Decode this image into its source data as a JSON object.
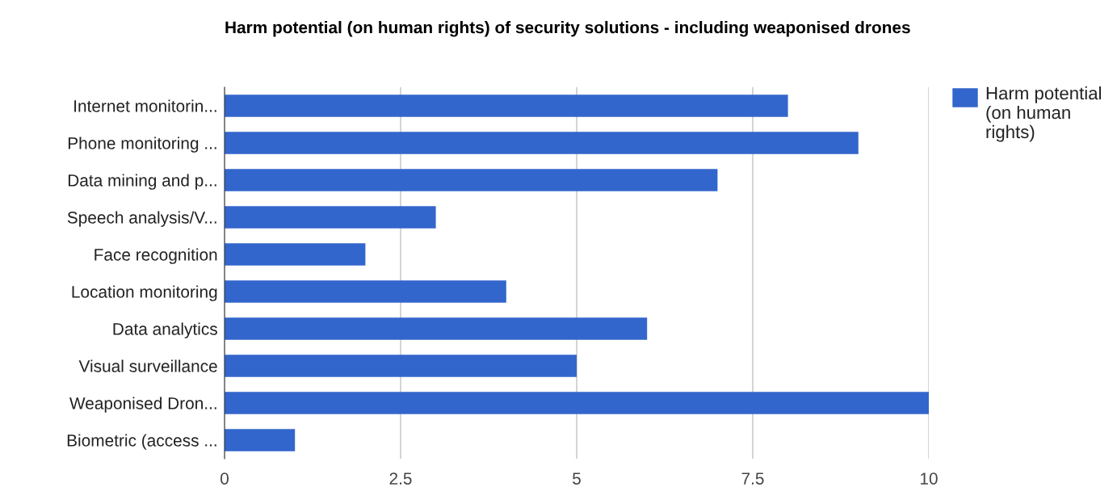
{
  "chart_data": {
    "type": "bar",
    "orientation": "horizontal",
    "title": "Harm potential (on human rights) of security solutions - including weaponised drones",
    "categories": [
      "Internet monitorin...",
      "Phone monitoring ...",
      "Data mining and p...",
      "Speech analysis/V...",
      "Face recognition",
      "Location monitoring",
      "Data analytics",
      "Visual surveillance",
      "Weaponised Dron...",
      "Biometric (access ..."
    ],
    "series": [
      {
        "name": "Harm potential (on human rights)",
        "color": "#3366cc",
        "values": [
          8,
          9,
          7,
          3,
          2,
          4,
          6,
          5,
          10,
          1
        ]
      }
    ],
    "xlim": [
      0,
      10
    ],
    "xticks": [
      0,
      2.5,
      5,
      7.5,
      10
    ],
    "grid": "x",
    "legend": "top right"
  }
}
